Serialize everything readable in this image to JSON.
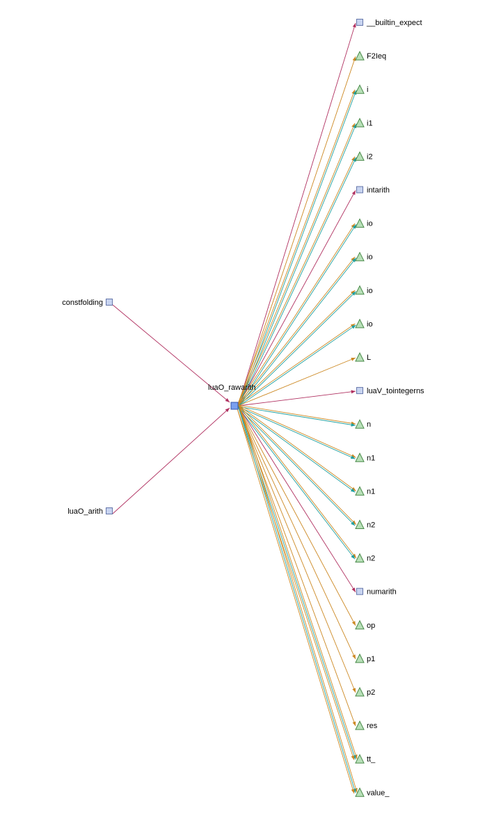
{
  "center": {
    "label": "luaO_rawarith",
    "kind": "function"
  },
  "callers": [
    {
      "label": "constfolding",
      "kind": "function"
    },
    {
      "label": "luaO_arith",
      "kind": "function"
    }
  ],
  "targets": [
    {
      "label": "__builtin_expect",
      "kind": "function",
      "edges": [
        "call"
      ]
    },
    {
      "label": "F2Ieq",
      "kind": "variable",
      "edges": [
        "ref"
      ]
    },
    {
      "label": "i",
      "kind": "variable",
      "edges": [
        "ref",
        "write"
      ]
    },
    {
      "label": "i1",
      "kind": "variable",
      "edges": [
        "ref",
        "write"
      ]
    },
    {
      "label": "i2",
      "kind": "variable",
      "edges": [
        "ref",
        "write"
      ]
    },
    {
      "label": "intarith",
      "kind": "function",
      "edges": [
        "call"
      ]
    },
    {
      "label": "io",
      "kind": "variable",
      "edges": [
        "ref",
        "write"
      ]
    },
    {
      "label": "io",
      "kind": "variable",
      "edges": [
        "ref",
        "write"
      ]
    },
    {
      "label": "io",
      "kind": "variable",
      "edges": [
        "ref",
        "write"
      ]
    },
    {
      "label": "io",
      "kind": "variable",
      "edges": [
        "ref",
        "write"
      ]
    },
    {
      "label": "L",
      "kind": "variable",
      "edges": [
        "ref"
      ]
    },
    {
      "label": "luaV_tointegerns",
      "kind": "function",
      "edges": [
        "call"
      ]
    },
    {
      "label": "n",
      "kind": "variable",
      "edges": [
        "ref",
        "write"
      ]
    },
    {
      "label": "n1",
      "kind": "variable",
      "edges": [
        "ref",
        "write"
      ]
    },
    {
      "label": "n1",
      "kind": "variable",
      "edges": [
        "ref",
        "write"
      ]
    },
    {
      "label": "n2",
      "kind": "variable",
      "edges": [
        "ref",
        "write"
      ]
    },
    {
      "label": "n2",
      "kind": "variable",
      "edges": [
        "ref",
        "write"
      ]
    },
    {
      "label": "numarith",
      "kind": "function",
      "edges": [
        "call"
      ]
    },
    {
      "label": "op",
      "kind": "variable",
      "edges": [
        "ref"
      ]
    },
    {
      "label": "p1",
      "kind": "variable",
      "edges": [
        "ref"
      ]
    },
    {
      "label": "p2",
      "kind": "variable",
      "edges": [
        "ref"
      ]
    },
    {
      "label": "res",
      "kind": "variable",
      "edges": [
        "ref"
      ]
    },
    {
      "label": "tt_",
      "kind": "variable",
      "edges": [
        "ref",
        "write",
        "ref"
      ]
    },
    {
      "label": "value_",
      "kind": "variable",
      "edges": [
        "ref",
        "write",
        "ref"
      ]
    }
  ],
  "colors": {
    "call": "#b03060",
    "ref": "#cc8822",
    "write": "#20a0a0",
    "function_fill": "#c8d4f0",
    "function_stroke": "#6677aa",
    "center_fill": "#7aa0f0",
    "center_stroke": "#3355aa",
    "variable_fill": "#b8e0b8",
    "variable_stroke": "#4a8a4a"
  }
}
